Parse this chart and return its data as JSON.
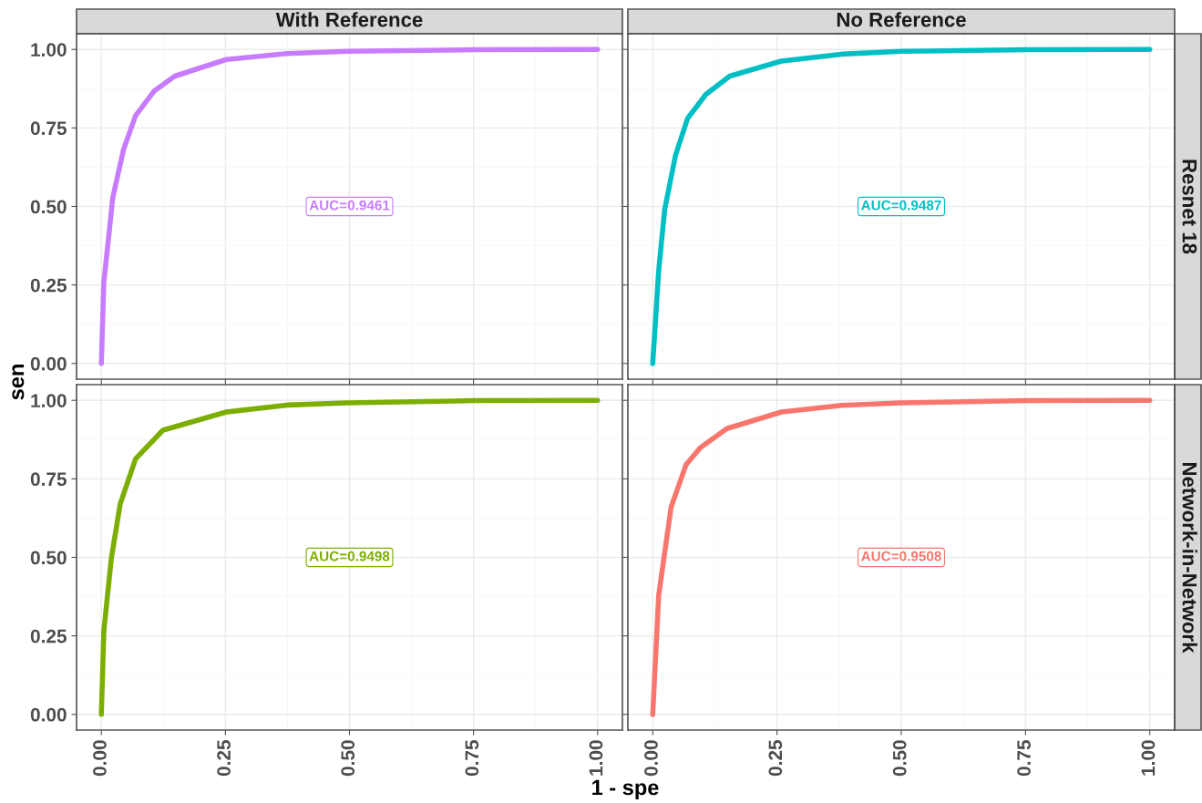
{
  "chart_data": [
    {
      "type": "line",
      "title": "With Reference",
      "ylabel": "sen",
      "xlim": [
        -0.05,
        1.05
      ],
      "ylim": [
        -0.05,
        1.05
      ],
      "xticks": [
        0,
        0.25,
        0.5,
        0.75,
        1
      ],
      "yticks": [
        {
          "value": 0,
          "label": "0.00"
        },
        {
          "value": 0.25,
          "label": "0.25"
        },
        {
          "value": 0.5,
          "label": "0.50"
        },
        {
          "value": 0.75,
          "label": "0.75"
        },
        {
          "value": 1,
          "label": "1.00"
        }
      ],
      "tick_labels": "y",
      "grid": true,
      "legend": false,
      "annotations": [
        "AUC=0.9461"
      ],
      "series": [
        {
          "color": "#c77cff",
          "x": [
            0,
            0.005,
            0.023,
            0.045,
            0.069,
            0.106,
            0.148,
            0.252,
            0.374,
            0.496,
            0.75,
            1.0
          ],
          "values": [
            0,
            0.258,
            0.528,
            0.683,
            0.789,
            0.867,
            0.915,
            0.968,
            0.987,
            0.994,
            0.999,
            1.0
          ]
        }
      ]
    },
    {
      "type": "line",
      "title": "No Reference",
      "y2label": "Resnet 18",
      "xlim": [
        -0.05,
        1.05
      ],
      "ylim": [
        -0.05,
        1.05
      ],
      "xticks": [
        0,
        0.25,
        0.5,
        0.75,
        1
      ],
      "yticks": [
        0,
        0.25,
        0.5,
        0.75,
        1
      ],
      "tick_labels": false,
      "grid": true,
      "legend": false,
      "annotations": [
        "AUC=0.9487"
      ],
      "series": [
        {
          "color": "#00bfc4",
          "x": [
            0,
            0.012,
            0.024,
            0.046,
            0.07,
            0.107,
            0.155,
            0.259,
            0.38,
            0.5,
            0.75,
            1.0
          ],
          "values": [
            0,
            0.296,
            0.49,
            0.664,
            0.78,
            0.857,
            0.915,
            0.963,
            0.985,
            0.994,
            0.999,
            1.0
          ]
        }
      ]
    },
    {
      "type": "line",
      "xlabel": "1 - spe",
      "xlim": [
        -0.05,
        1.05
      ],
      "ylim": [
        -0.05,
        1.05
      ],
      "xticks": [
        {
          "value": 0,
          "label": "0.00"
        },
        {
          "value": 0.25,
          "label": "0.25"
        },
        {
          "value": 0.5,
          "label": "0.50"
        },
        {
          "value": 0.75,
          "label": "0.75"
        },
        {
          "value": 1,
          "label": "1.00"
        }
      ],
      "yticks": [
        {
          "value": 0,
          "label": "0.00"
        },
        {
          "value": 0.25,
          "label": "0.25"
        },
        {
          "value": 0.5,
          "label": "0.50"
        },
        {
          "value": 0.75,
          "label": "0.75"
        },
        {
          "value": 1,
          "label": "1.00"
        }
      ],
      "grid": true,
      "legend": false,
      "annotations": [
        "AUC=0.9498"
      ],
      "series": [
        {
          "color": "#7cae00",
          "x": [
            0,
            0.005,
            0.02,
            0.038,
            0.069,
            0.124,
            0.252,
            0.374,
            0.496,
            0.75,
            1.0
          ],
          "values": [
            0,
            0.265,
            0.496,
            0.67,
            0.814,
            0.905,
            0.963,
            0.985,
            0.992,
            0.999,
            1.0
          ]
        }
      ]
    },
    {
      "type": "line",
      "y2label": "Network-in-Network",
      "xlim": [
        -0.05,
        1.05
      ],
      "ylim": [
        -0.05,
        1.05
      ],
      "xticks": [
        {
          "value": 0,
          "label": "0.00"
        },
        {
          "value": 0.25,
          "label": "0.25"
        },
        {
          "value": 0.5,
          "label": "0.50"
        },
        {
          "value": 0.75,
          "label": "0.75"
        },
        {
          "value": 1,
          "label": "1.00"
        }
      ],
      "yticks": [
        0,
        0.25,
        0.5,
        0.75,
        1
      ],
      "tick_labels": "x",
      "grid": true,
      "legend": false,
      "annotations": [
        "AUC=0.9508"
      ],
      "series": [
        {
          "color": "#f8766d",
          "x": [
            0,
            0.012,
            0.037,
            0.067,
            0.095,
            0.149,
            0.259,
            0.38,
            0.5,
            0.75,
            1.0
          ],
          "values": [
            0,
            0.38,
            0.66,
            0.795,
            0.848,
            0.91,
            0.963,
            0.984,
            0.992,
            0.999,
            1.0
          ]
        }
      ]
    }
  ]
}
